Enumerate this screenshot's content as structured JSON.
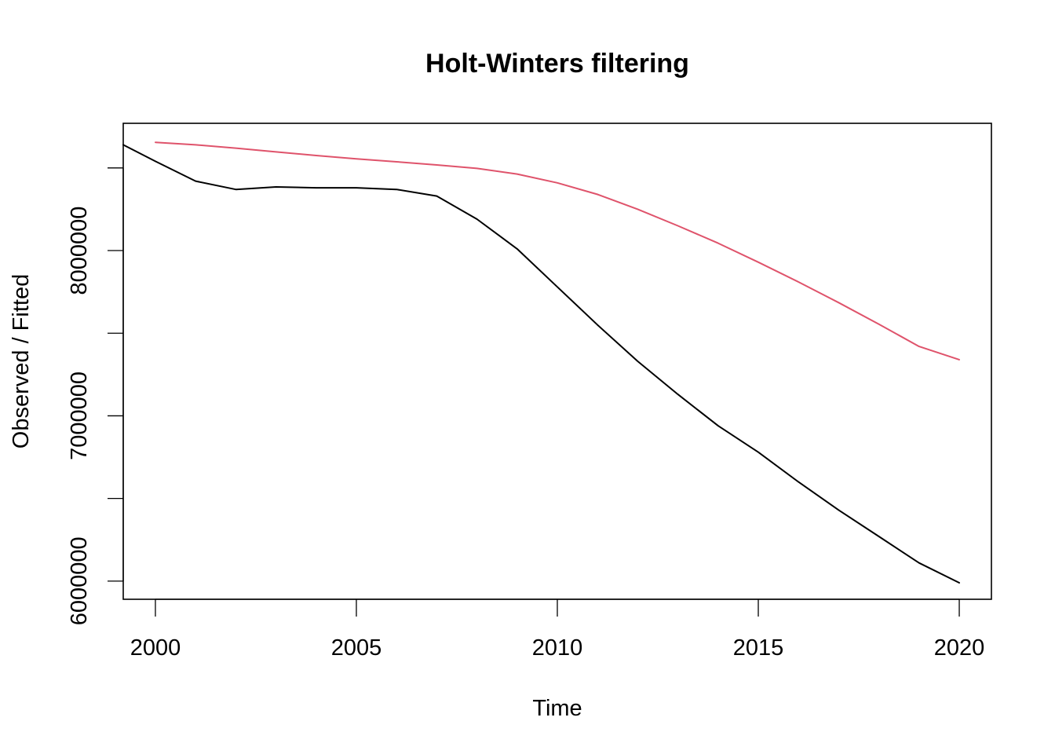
{
  "chart_data": {
    "type": "line",
    "title": "Holt-Winters filtering",
    "xlabel": "Time",
    "ylabel": "Observed / Fitted",
    "xlim": [
      1999.2,
      2020.8
    ],
    "ylim": [
      5890000,
      8770000
    ],
    "x_ticks": [
      2000,
      2005,
      2010,
      2015,
      2020
    ],
    "y_ticks": [
      6000000,
      6500000,
      7000000,
      7500000,
      8000000,
      8500000
    ],
    "y_tick_labels": [
      {
        "value": 6000000,
        "label": "6000000"
      },
      {
        "value": 7000000,
        "label": "7000000"
      },
      {
        "value": 8000000,
        "label": "8000000"
      }
    ],
    "grid": false,
    "legend": "none",
    "series": [
      {
        "color": "#000000",
        "x": [
          1999.2,
          2000,
          2001,
          2002,
          2003,
          2004,
          2005,
          2006,
          2007,
          2008,
          2009,
          2010,
          2011,
          2012,
          2013,
          2014,
          2015,
          2016,
          2017,
          2018,
          2019,
          2020
        ],
        "values": [
          8640000,
          8540000,
          8420000,
          8370000,
          8385000,
          8380000,
          8380000,
          8370000,
          8330000,
          8190000,
          8010000,
          7780000,
          7550000,
          7330000,
          7130000,
          6940000,
          6780000,
          6600000,
          6430000,
          6270000,
          6110000,
          5990000
        ]
      },
      {
        "color": "#DF536B",
        "x": [
          2000,
          2001,
          2002,
          2003,
          2004,
          2005,
          2006,
          2007,
          2008,
          2009,
          2010,
          2011,
          2012,
          2013,
          2014,
          2015,
          2016,
          2017,
          2018,
          2019,
          2020
        ],
        "values": [
          8655000,
          8640000,
          8620000,
          8597000,
          8575000,
          8555000,
          8537000,
          8518000,
          8497000,
          8463000,
          8410000,
          8340000,
          8250000,
          8150000,
          8045000,
          7930000,
          7810000,
          7685000,
          7555000,
          7420000,
          7340000
        ]
      }
    ]
  }
}
